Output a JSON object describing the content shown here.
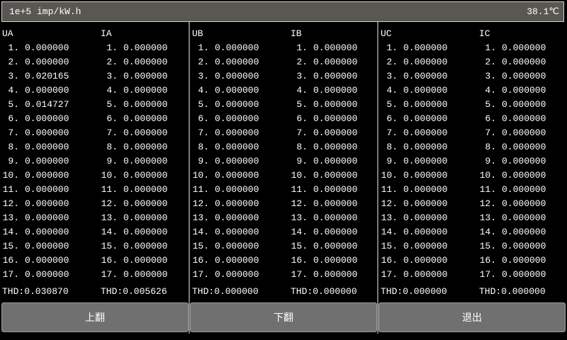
{
  "header": {
    "title": "1e+5 imp/kW.h",
    "temperature": "38.1℃"
  },
  "panels": [
    {
      "columns": [
        {
          "label": "UA",
          "values": [
            "0.000000",
            "0.000000",
            "0.020165",
            "0.000000",
            "0.014727",
            "0.000000",
            "0.000000",
            "0.000000",
            "0.000000",
            "0.000000",
            "0.000000",
            "0.000000",
            "0.000000",
            "0.000000",
            "0.000000",
            "0.000000",
            "0.000000"
          ],
          "thd": "THD:0.030870"
        },
        {
          "label": "IA",
          "values": [
            "0.000000",
            "0.000000",
            "0.000000",
            "0.000000",
            "0.000000",
            "0.000000",
            "0.000000",
            "0.000000",
            "0.000000",
            "0.000000",
            "0.000000",
            "0.000000",
            "0.000000",
            "0.000000",
            "0.000000",
            "0.000000",
            "0.000000"
          ],
          "thd": "THD:0.005626"
        }
      ]
    },
    {
      "columns": [
        {
          "label": "UB",
          "values": [
            "0.000000",
            "0.000000",
            "0.000000",
            "0.000000",
            "0.000000",
            "0.000000",
            "0.000000",
            "0.000000",
            "0.000000",
            "0.000000",
            "0.000000",
            "0.000000",
            "0.000000",
            "0.000000",
            "0.000000",
            "0.000000",
            "0.000000"
          ],
          "thd": "THD:0.000000"
        },
        {
          "label": "IB",
          "values": [
            "0.000000",
            "0.000000",
            "0.000000",
            "0.000000",
            "0.000000",
            "0.000000",
            "0.000000",
            "0.000000",
            "0.000000",
            "0.000000",
            "0.000000",
            "0.000000",
            "0.000000",
            "0.000000",
            "0.000000",
            "0.000000",
            "0.000000"
          ],
          "thd": "THD:0.000000"
        }
      ]
    },
    {
      "columns": [
        {
          "label": "UC",
          "values": [
            "0.000000",
            "0.000000",
            "0.000000",
            "0.000000",
            "0.000000",
            "0.000000",
            "0.000000",
            "0.000000",
            "0.000000",
            "0.000000",
            "0.000000",
            "0.000000",
            "0.000000",
            "0.000000",
            "0.000000",
            "0.000000",
            "0.000000"
          ],
          "thd": "THD:0.000000"
        },
        {
          "label": "IC",
          "values": [
            "0.000000",
            "0.000000",
            "0.000000",
            "0.000000",
            "0.000000",
            "0.000000",
            "0.000000",
            "0.000000",
            "0.000000",
            "0.000000",
            "0.000000",
            "0.000000",
            "0.000000",
            "0.000000",
            "0.000000",
            "0.000000",
            "0.000000"
          ],
          "thd": "THD:0.000000"
        }
      ]
    }
  ],
  "buttons": {
    "page_up": "上翻",
    "page_down": "下翻",
    "exit": "退出"
  }
}
